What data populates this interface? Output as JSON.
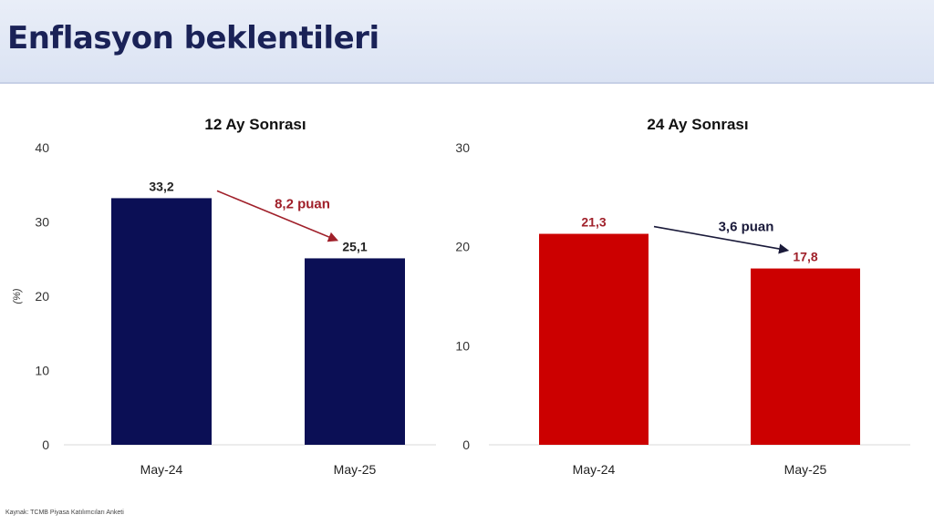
{
  "header": {
    "title": "Enflasyon beklentileri"
  },
  "source": "Kaynak: TCMB Piyasa Katılımcıları Anketi",
  "chart_data": [
    {
      "type": "bar",
      "title": "12 Ay Sonrası",
      "ylabel": "(%)",
      "categories": [
        "May-24",
        "May-25"
      ],
      "values": [
        33.2,
        25.1
      ],
      "value_labels": [
        "33,2",
        "25,1"
      ],
      "ylim": [
        0,
        40
      ],
      "yticks": [
        0,
        10,
        20,
        30,
        40
      ],
      "color": "#0b0f55",
      "value_label_colors": [
        "#222222",
        "#222222"
      ],
      "annotation": {
        "text": "8,2 puan",
        "color": "#a0202a"
      },
      "grid": false
    },
    {
      "type": "bar",
      "title": "24 Ay Sonrası",
      "ylabel": "",
      "categories": [
        "May-24",
        "May-25"
      ],
      "values": [
        21.3,
        17.8
      ],
      "value_labels": [
        "21,3",
        "17,8"
      ],
      "ylim": [
        0,
        30
      ],
      "yticks": [
        0,
        10,
        20,
        30
      ],
      "color": "#cc0000",
      "value_label_colors": [
        "#a0202a",
        "#a0202a"
      ],
      "annotation": {
        "text": "3,6 puan",
        "color": "#1a1a3a"
      },
      "grid": false
    }
  ]
}
